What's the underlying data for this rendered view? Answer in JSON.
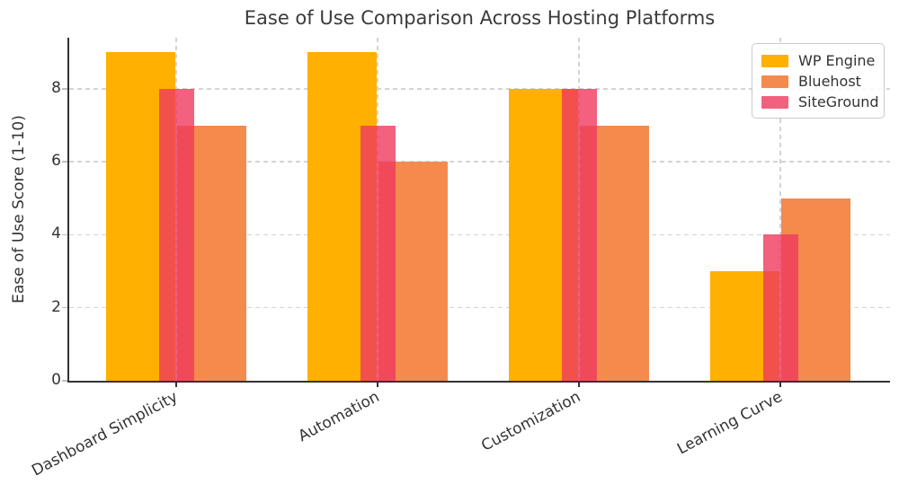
{
  "title": "Ease of Use Comparison Across Hosting Platforms",
  "chart_data": {
    "type": "bar",
    "title": "Ease of Use Comparison Across Hosting Platforms",
    "xlabel": "",
    "ylabel": "Ease of Use Score (1-10)",
    "categories": [
      "Dashboard Simplicity",
      "Automation",
      "Customization",
      "Learning Curve"
    ],
    "series": [
      {
        "name": "WP Engine",
        "color": "#FFB000",
        "values": [
          9,
          9,
          8,
          3
        ]
      },
      {
        "name": "Bluehost",
        "color": "#F58A4D",
        "values": [
          7,
          6,
          7,
          5
        ]
      },
      {
        "name": "SiteGround",
        "color": "rgba(239,58,94,0.8)",
        "values": [
          8,
          7,
          8,
          4
        ]
      }
    ],
    "ylim": [
      0,
      9.4
    ],
    "yticks": [
      0,
      2,
      4,
      6,
      8
    ],
    "grid": true,
    "grid_style": "dashed",
    "legend_position": "upper right",
    "background": "#ffffff",
    "text_color": "#333333"
  }
}
